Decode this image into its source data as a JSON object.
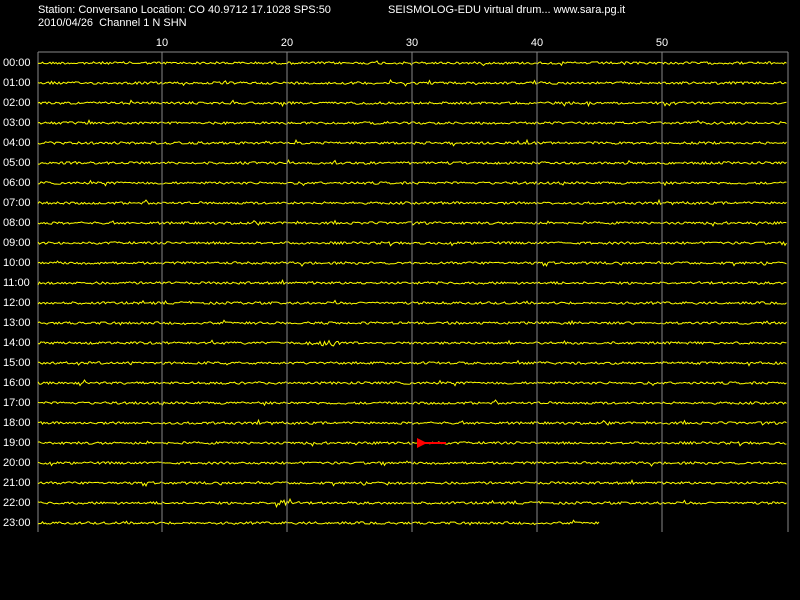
{
  "header": {
    "station_line": "Station: Conversano Location: CO 40.9712 17.1028 SPS:50",
    "title": "SEISMOLOG-EDU virtual drum... www.sara.pg.it",
    "date_line": "2010/04/26  Channel 1 N SHN"
  },
  "minute_labels": [
    10,
    20,
    30,
    40,
    50
  ],
  "hour_labels": [
    "00:00",
    "01:00",
    "02:00",
    "03:00",
    "04:00",
    "05:00",
    "06:00",
    "07:00",
    "08:00",
    "09:00",
    "10:00",
    "11:00",
    "12:00",
    "13:00",
    "14:00",
    "15:00",
    "16:00",
    "17:00",
    "18:00",
    "19:00",
    "20:00",
    "21:00",
    "22:00",
    "23:00"
  ]
}
